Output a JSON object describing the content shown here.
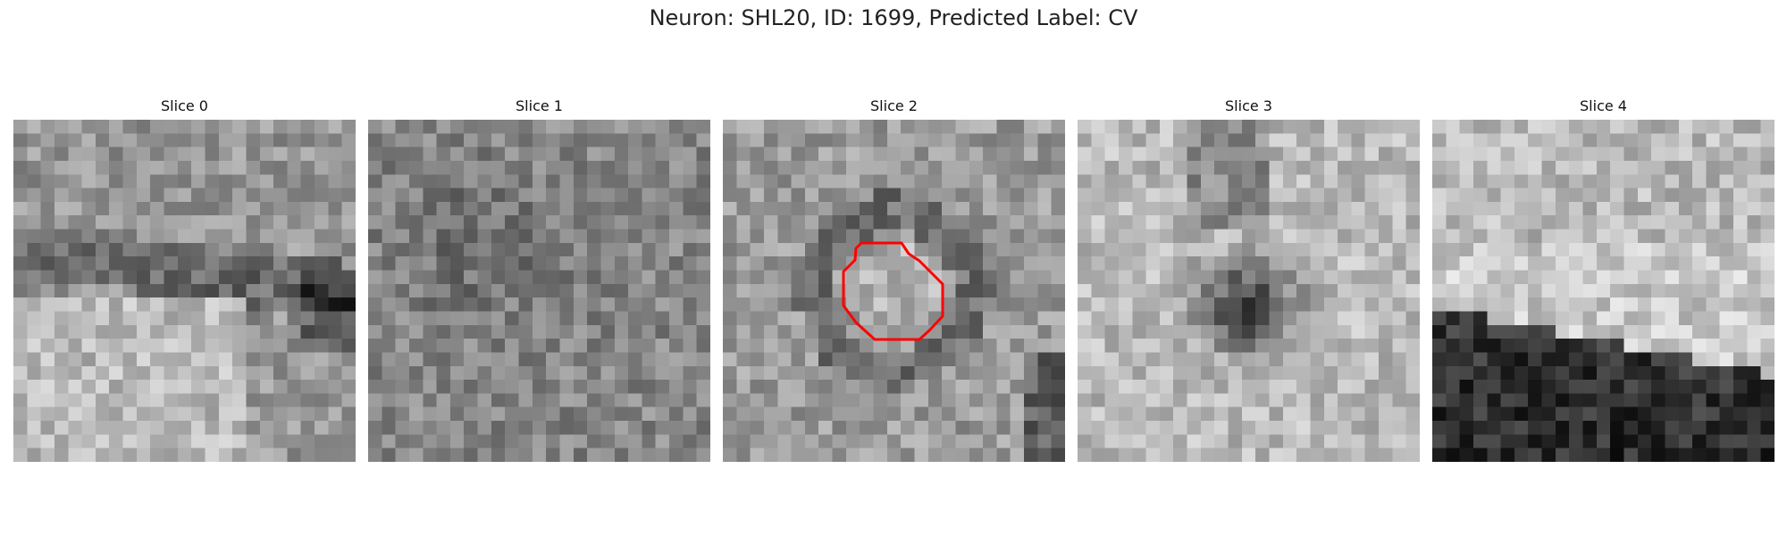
{
  "figure": {
    "title": "Neuron: SHL20, ID: 1699, Predicted Label: CV"
  },
  "slices": [
    {
      "title": "Slice 0",
      "pattern": "bright-band-lower"
    },
    {
      "title": "Slice 1",
      "pattern": "uniform-noise"
    },
    {
      "title": "Slice 2",
      "pattern": "noise-with-roi",
      "has_contour": true
    },
    {
      "title": "Slice 3",
      "pattern": "dark-spot-center"
    },
    {
      "title": "Slice 4",
      "pattern": "dark-lower-region"
    }
  ],
  "colors": {
    "contour": "#ff0000",
    "colormap": "grayscale"
  }
}
